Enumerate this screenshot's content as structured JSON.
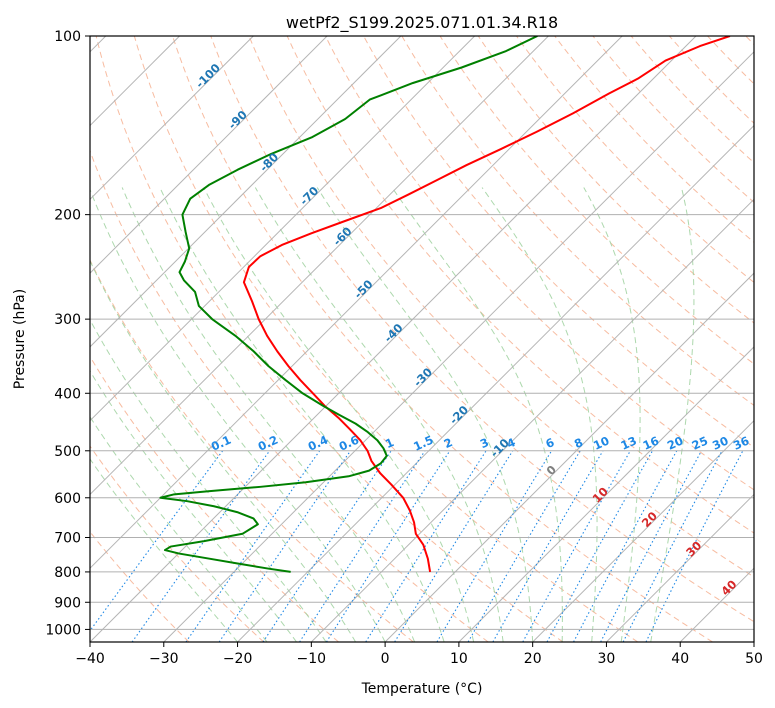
{
  "chart_data": {
    "type": "line",
    "title": "wetPf2_S199.2025.071.01.34.R18",
    "xlabel": "Temperature (°C)",
    "ylabel": "Pressure (hPa)",
    "xlim": [
      -40,
      50
    ],
    "ylim": [
      1050,
      100
    ],
    "y_scale": "log",
    "grid": true,
    "x_ticks": [
      -40,
      -30,
      -20,
      -10,
      0,
      10,
      20,
      30,
      40,
      50
    ],
    "x_tick_labels": [
      "−40",
      "−30",
      "−20",
      "−10",
      "0",
      "10",
      "20",
      "30",
      "40",
      "50"
    ],
    "y_ticks": [
      1000,
      900,
      800,
      700,
      600,
      500,
      400,
      300,
      200,
      100
    ],
    "y_tick_labels": [
      "1000",
      "900",
      "800",
      "700",
      "600",
      "500",
      "400",
      "300",
      "200",
      "100"
    ],
    "series": [
      {
        "color": "#ff0000",
        "pressure": [
          800,
          760,
          720,
          690,
          660,
          630,
          600,
          570,
          545,
          520,
          500,
          480,
          460,
          440,
          420,
          400,
          380,
          360,
          340,
          320,
          300,
          280,
          260,
          245,
          235,
          225,
          215,
          205,
          195,
          185,
          175,
          165,
          155,
          145,
          135,
          125,
          118,
          110,
          104,
          100
        ],
        "temperature": [
          -3.4,
          -5.5,
          -8.0,
          -10.5,
          -12.3,
          -14.5,
          -17.1,
          -20.5,
          -23.6,
          -26.4,
          -28.3,
          -30.7,
          -33.6,
          -36.7,
          -40.2,
          -43.5,
          -47.0,
          -50.5,
          -54.0,
          -57.5,
          -60.9,
          -64.2,
          -67.9,
          -69.3,
          -69.2,
          -67.8,
          -65.4,
          -62.5,
          -59.4,
          -57.5,
          -55.6,
          -53.6,
          -51.1,
          -48.6,
          -46.2,
          -44.0,
          -42.1,
          -40.8,
          -38.1,
          -35.4
        ]
      },
      {
        "color": "#008000",
        "pressure": [
          800,
          790,
          775,
          760,
          745,
          735,
          725,
          710,
          690,
          665,
          650,
          635,
          620,
          608,
          600,
          592,
          585,
          575,
          565,
          552,
          540,
          525,
          510,
          495,
          480,
          465,
          450,
          435,
          420,
          400,
          380,
          360,
          340,
          320,
          300,
          285,
          270,
          258,
          250,
          240,
          228,
          214,
          200,
          188,
          178,
          168,
          158,
          148,
          138,
          128,
          120,
          113,
          106,
          100
        ],
        "temperature": [
          -22.3,
          -25.7,
          -30.4,
          -35.1,
          -39.9,
          -42.3,
          -42.0,
          -38.2,
          -34.0,
          -33.2,
          -34.6,
          -37.5,
          -41.6,
          -45.9,
          -50.0,
          -48.6,
          -44.4,
          -37.9,
          -32.4,
          -27.4,
          -25.4,
          -24.8,
          -25.0,
          -26.5,
          -28.4,
          -30.8,
          -33.6,
          -37.0,
          -40.4,
          -44.9,
          -49.0,
          -53.2,
          -57.2,
          -61.8,
          -67.2,
          -70.8,
          -73.2,
          -76.3,
          -78.0,
          -78.7,
          -79.9,
          -82.6,
          -85.4,
          -86.5,
          -85.8,
          -84.0,
          -81.6,
          -78.3,
          -76.3,
          -75.6,
          -72.0,
          -67.5,
          -63.7,
          -61.5
        ]
      }
    ],
    "isotherm_labels": [
      "-100",
      "-90",
      "-80",
      "-70",
      "-60",
      "-50",
      "-40",
      "-30",
      "-20",
      "-10",
      "0",
      "10",
      "20",
      "30",
      "40"
    ],
    "mixing_ratio_labels": [
      "0.1",
      "0.2",
      "0.4",
      "0.6",
      "1",
      "1.5",
      "2",
      "3",
      "4",
      "6",
      "8",
      "10",
      "13",
      "16",
      "20",
      "25",
      "30",
      "36"
    ]
  }
}
